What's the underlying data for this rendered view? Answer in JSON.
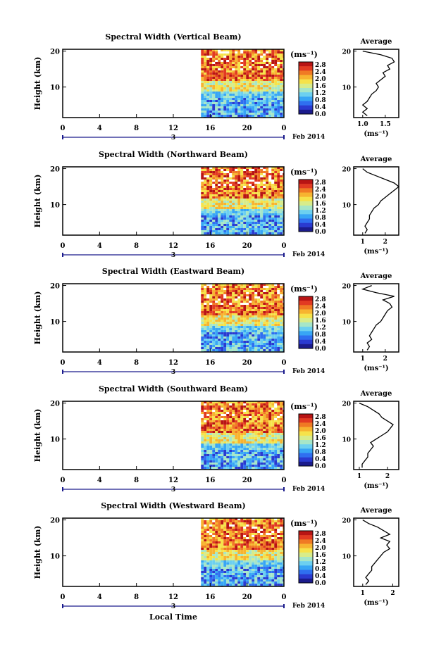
{
  "chart_data": [
    {
      "type": "heatmap",
      "title": "Spectral Width (Vertical Beam)",
      "ylabel": "Height (km)",
      "xticks": [
        "0",
        "4",
        "8",
        "12",
        "16",
        "20",
        "0"
      ],
      "yticks": [
        "20",
        "10"
      ],
      "day_label": "3",
      "date_label": "Feb 2014",
      "xlim": [
        0,
        24
      ],
      "ylim": [
        1.5,
        20.5
      ],
      "data_start_hour": 15,
      "colorbar": {
        "unit": "(ms⁻¹)",
        "ticks": [
          "2.8",
          "2.4",
          "2.0",
          "1.6",
          "1.2",
          "0.8",
          "0.4",
          "0.0"
        ]
      },
      "average": {
        "title": "Average",
        "xlabel": "(ms⁻¹)",
        "xticks": [
          "1.0",
          "1.5"
        ],
        "xlim": [
          0.8,
          1.8
        ],
        "yticks": [
          "20",
          "10"
        ],
        "profile": [
          [
            1.1,
            2
          ],
          [
            1.0,
            3
          ],
          [
            1.1,
            4
          ],
          [
            1.0,
            5
          ],
          [
            1.1,
            6
          ],
          [
            1.15,
            7
          ],
          [
            1.2,
            8
          ],
          [
            1.3,
            9
          ],
          [
            1.35,
            10
          ],
          [
            1.3,
            11
          ],
          [
            1.4,
            12
          ],
          [
            1.5,
            13
          ],
          [
            1.45,
            14
          ],
          [
            1.6,
            15
          ],
          [
            1.55,
            16
          ],
          [
            1.7,
            17
          ],
          [
            1.65,
            18
          ],
          [
            1.4,
            19
          ],
          [
            1.0,
            20
          ]
        ]
      }
    },
    {
      "type": "heatmap",
      "title": "Spectral Width (Northward Beam)",
      "ylabel": "Height (km)",
      "xticks": [
        "0",
        "4",
        "8",
        "12",
        "16",
        "20",
        "0"
      ],
      "yticks": [
        "20",
        "10"
      ],
      "day_label": "3",
      "date_label": "Feb 2014",
      "xlim": [
        0,
        24
      ],
      "ylim": [
        1.5,
        20.5
      ],
      "data_start_hour": 15,
      "colorbar": {
        "unit": "(ms⁻¹)",
        "ticks": [
          "2.8",
          "2.4",
          "2.0",
          "1.6",
          "1.2",
          "0.8",
          "0.4",
          "0.0"
        ]
      },
      "average": {
        "title": "Average",
        "xlabel": "(ms⁻¹)",
        "xticks": [
          "1",
          "2"
        ],
        "xlim": [
          0.6,
          2.6
        ],
        "yticks": [
          "20",
          "10"
        ],
        "profile": [
          [
            1.1,
            2
          ],
          [
            1.2,
            3
          ],
          [
            1.1,
            4
          ],
          [
            1.2,
            5
          ],
          [
            1.3,
            6
          ],
          [
            1.3,
            7
          ],
          [
            1.4,
            8
          ],
          [
            1.5,
            9
          ],
          [
            1.7,
            10
          ],
          [
            1.8,
            11
          ],
          [
            2.0,
            12
          ],
          [
            2.2,
            13
          ],
          [
            2.4,
            14
          ],
          [
            2.6,
            15
          ],
          [
            2.4,
            16
          ],
          [
            2.0,
            17
          ],
          [
            1.6,
            18
          ],
          [
            1.2,
            19
          ],
          [
            1.0,
            20
          ]
        ]
      }
    },
    {
      "type": "heatmap",
      "title": "Spectral Width (Eastward Beam)",
      "ylabel": "Height (km)",
      "xticks": [
        "0",
        "4",
        "8",
        "12",
        "16",
        "20",
        "0"
      ],
      "yticks": [
        "20",
        "10"
      ],
      "day_label": "3",
      "date_label": "Feb 2014",
      "xlim": [
        0,
        24
      ],
      "ylim": [
        1.5,
        20.5
      ],
      "data_start_hour": 15,
      "colorbar": {
        "unit": "(ms⁻¹)",
        "ticks": [
          "2.8",
          "2.4",
          "2.0",
          "1.6",
          "1.2",
          "0.8",
          "0.4",
          "0.0"
        ]
      },
      "average": {
        "title": "Average",
        "xlabel": "(ms⁻¹)",
        "xticks": [
          "1",
          "2"
        ],
        "xlim": [
          0.6,
          2.6
        ],
        "yticks": [
          "20",
          "10"
        ],
        "profile": [
          [
            1.2,
            2
          ],
          [
            1.3,
            3
          ],
          [
            1.2,
            4
          ],
          [
            1.4,
            5
          ],
          [
            1.3,
            6
          ],
          [
            1.4,
            7
          ],
          [
            1.5,
            8
          ],
          [
            1.6,
            9
          ],
          [
            1.8,
            10
          ],
          [
            1.9,
            11
          ],
          [
            2.0,
            12
          ],
          [
            2.1,
            13
          ],
          [
            2.3,
            14
          ],
          [
            2.2,
            15
          ],
          [
            1.9,
            16
          ],
          [
            2.4,
            17
          ],
          [
            1.6,
            18
          ],
          [
            1.0,
            19
          ],
          [
            1.4,
            20
          ]
        ]
      }
    },
    {
      "type": "heatmap",
      "title": "Spectral Width (Southward Beam)",
      "ylabel": "Height (km)",
      "xticks": [
        "0",
        "4",
        "8",
        "12",
        "16",
        "20",
        "0"
      ],
      "yticks": [
        "20",
        "10"
      ],
      "day_label": "3",
      "date_label": "Feb 2014",
      "xlim": [
        0,
        24
      ],
      "ylim": [
        1.5,
        20.5
      ],
      "data_start_hour": 15,
      "colorbar": {
        "unit": "(ms⁻¹)",
        "ticks": [
          "2.8",
          "2.4",
          "2.0",
          "1.6",
          "1.2",
          "0.8",
          "0.4",
          "0.0"
        ]
      },
      "average": {
        "title": "Average",
        "xlabel": "(ms⁻¹)",
        "xticks": [
          "1",
          "2"
        ],
        "xlim": [
          0.8,
          2.4
        ],
        "yticks": [
          "20",
          "10"
        ],
        "profile": [
          [
            1.1,
            2
          ],
          [
            1.1,
            3
          ],
          [
            1.2,
            4
          ],
          [
            1.3,
            5
          ],
          [
            1.3,
            6
          ],
          [
            1.4,
            7
          ],
          [
            1.5,
            8
          ],
          [
            1.4,
            9
          ],
          [
            1.6,
            10
          ],
          [
            1.8,
            11
          ],
          [
            2.0,
            12
          ],
          [
            2.1,
            13
          ],
          [
            2.2,
            14
          ],
          [
            2.0,
            15
          ],
          [
            1.8,
            16
          ],
          [
            1.7,
            17
          ],
          [
            1.5,
            18
          ],
          [
            1.3,
            19
          ],
          [
            1.0,
            20
          ]
        ]
      }
    },
    {
      "type": "heatmap",
      "title": "Spectral Width (Westward Beam)",
      "ylabel": "Height (km)",
      "xticks": [
        "0",
        "4",
        "8",
        "12",
        "16",
        "20",
        "0"
      ],
      "yticks": [
        "20",
        "10"
      ],
      "day_label": "3",
      "date_label": "Feb 2014",
      "xlabel": "Local Time",
      "xlim": [
        0,
        24
      ],
      "ylim": [
        1.5,
        20.5
      ],
      "data_start_hour": 15,
      "colorbar": {
        "unit": "(ms⁻¹)",
        "ticks": [
          "2.8",
          "2.4",
          "2.0",
          "1.6",
          "1.2",
          "0.8",
          "0.4",
          "0.0"
        ]
      },
      "average": {
        "title": "Average",
        "xlabel": "(ms⁻¹)",
        "xticks": [
          "1",
          "2"
        ],
        "xlim": [
          0.7,
          2.2
        ],
        "yticks": [
          "20",
          "10"
        ],
        "profile": [
          [
            1.1,
            2
          ],
          [
            1.2,
            3
          ],
          [
            1.1,
            4
          ],
          [
            1.2,
            5
          ],
          [
            1.3,
            6
          ],
          [
            1.3,
            7
          ],
          [
            1.4,
            8
          ],
          [
            1.5,
            9
          ],
          [
            1.6,
            10
          ],
          [
            1.7,
            11
          ],
          [
            1.9,
            12
          ],
          [
            1.8,
            13
          ],
          [
            1.9,
            14
          ],
          [
            1.6,
            15
          ],
          [
            1.9,
            16
          ],
          [
            1.7,
            17
          ],
          [
            1.5,
            18
          ],
          [
            1.2,
            19
          ],
          [
            1.0,
            20
          ]
        ]
      }
    }
  ],
  "colors": {
    "colormap": [
      "#1b1b8c",
      "#2a3ad0",
      "#2f6ff0",
      "#38a6f5",
      "#6cd0f0",
      "#a6e6c8",
      "#d8ec8a",
      "#f6e24a",
      "#f7b430",
      "#f07a24",
      "#e23a22",
      "#b81414"
    ],
    "axis": "#000000",
    "marker": "#1b1b8c"
  }
}
